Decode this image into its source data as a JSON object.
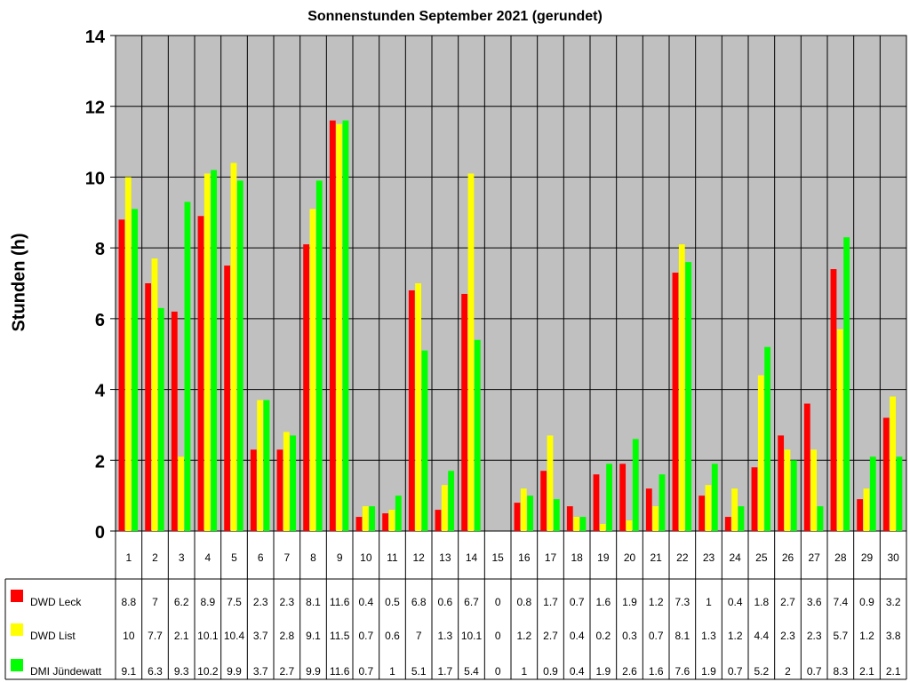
{
  "chart_data": {
    "type": "bar",
    "title": "Sonnenstunden September 2021 (gerundet)",
    "xlabel": "",
    "ylabel": "Stunden (h)",
    "ylim": [
      0,
      14
    ],
    "yticks": [
      0,
      2,
      4,
      6,
      8,
      10,
      12,
      14
    ],
    "grid": true,
    "legend": "bottom-left data table",
    "categories": [
      "1",
      "2",
      "3",
      "4",
      "5",
      "6",
      "7",
      "8",
      "9",
      "10",
      "11",
      "12",
      "13",
      "14",
      "15",
      "16",
      "17",
      "18",
      "19",
      "20",
      "21",
      "22",
      "23",
      "24",
      "25",
      "26",
      "27",
      "28",
      "29",
      "30"
    ],
    "series": [
      {
        "name": "DWD Leck",
        "color": "#ff0000",
        "values": [
          8.8,
          7,
          6.2,
          8.9,
          7.5,
          2.3,
          2.3,
          8.1,
          11.6,
          0.4,
          0.5,
          6.8,
          0.6,
          6.7,
          0,
          0.8,
          1.7,
          0.7,
          1.6,
          1.9,
          1.2,
          7.3,
          1,
          0.4,
          1.8,
          2.7,
          3.6,
          7.4,
          0.9,
          3.2
        ]
      },
      {
        "name": "DWD List",
        "color": "#ffff00",
        "values": [
          10,
          7.7,
          2.1,
          10.1,
          10.4,
          3.7,
          2.8,
          9.1,
          11.5,
          0.7,
          0.6,
          7,
          1.3,
          10.1,
          0,
          1.2,
          2.7,
          0.4,
          0.2,
          0.3,
          0.7,
          8.1,
          1.3,
          1.2,
          4.4,
          2.3,
          2.3,
          5.7,
          1.2,
          3.8
        ]
      },
      {
        "name": "DMI Jündewatt",
        "color": "#00ff00",
        "values": [
          9.1,
          6.3,
          9.3,
          10.2,
          9.9,
          3.7,
          2.7,
          9.9,
          11.6,
          0.7,
          1,
          5.1,
          1.7,
          5.4,
          0,
          1,
          0.9,
          0.4,
          1.9,
          2.6,
          1.6,
          7.6,
          1.9,
          0.7,
          5.2,
          2,
          0.7,
          8.3,
          2.1,
          2.1
        ]
      }
    ],
    "plot_background": "#c0c0c0"
  }
}
